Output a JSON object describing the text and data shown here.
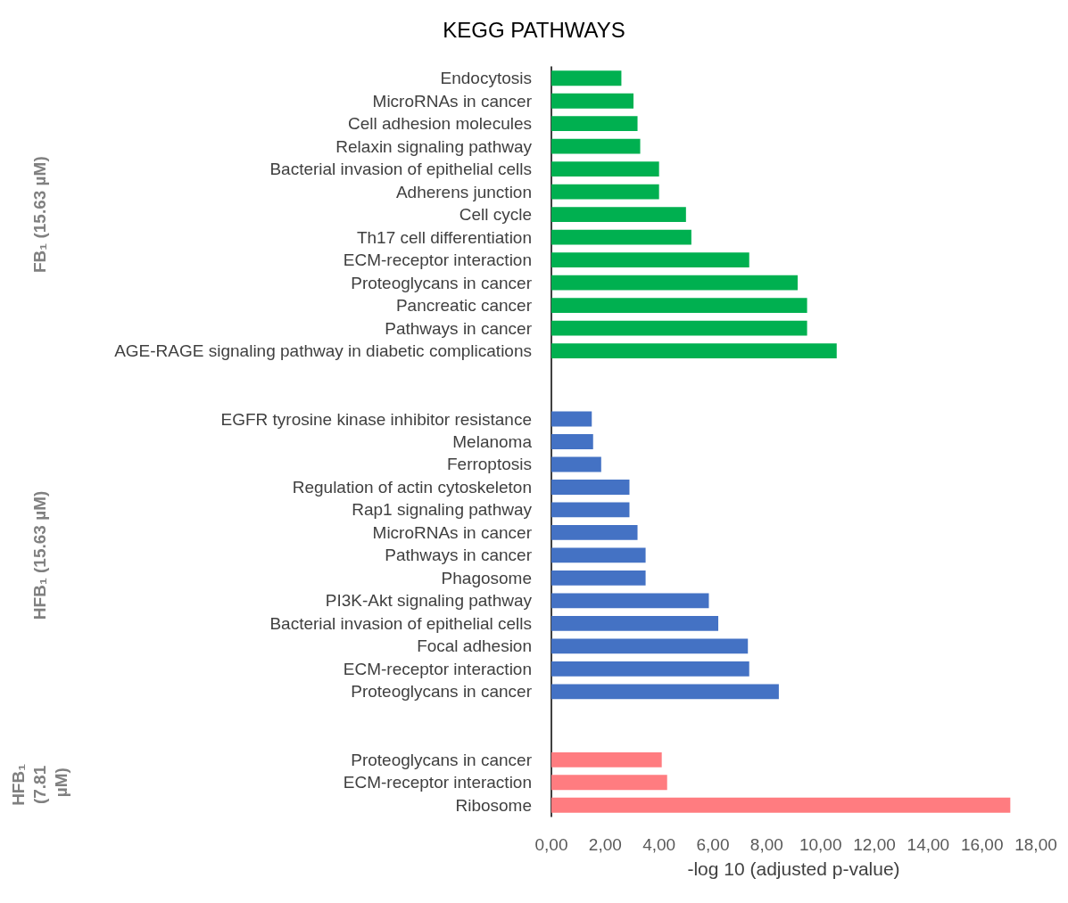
{
  "chart_data": {
    "type": "bar",
    "orientation": "horizontal",
    "title": "KEGG PATHWAYS",
    "xlabel": "-log 10 (adjusted p-value)",
    "categories": [
      "Endocytosis",
      "MicroRNAs in cancer",
      "Cell adhesion molecules",
      "Relaxin signaling pathway",
      "Bacterial invasion of epithelial cells",
      "Adherens junction",
      "Cell cycle",
      "Th17 cell differentiation",
      "ECM-receptor interaction",
      "Proteoglycans in cancer",
      "Pancreatic cancer",
      "Pathways in cancer",
      "AGE-RAGE signaling pathway in diabetic complications",
      null,
      null,
      "EGFR tyrosine kinase inhibitor resistance",
      "Melanoma",
      "Ferroptosis",
      "Regulation of actin cytoskeleton",
      "Rap1 signaling pathway",
      "MicroRNAs in cancer",
      "Pathways in cancer",
      "Phagosome",
      "PI3K-Akt signaling pathway",
      "Bacterial invasion of epithelial cells",
      "Focal adhesion",
      "ECM-receptor interaction",
      "Proteoglycans in cancer",
      null,
      null,
      "Proteoglycans in cancer",
      "ECM-receptor interaction",
      "Ribosome"
    ],
    "series": [
      {
        "color": "#00b050",
        "values": [
          2.6,
          3.05,
          3.2,
          3.3,
          4.0,
          4.0,
          5.0,
          5.2,
          7.35,
          9.15,
          9.5,
          9.5,
          10.6,
          null,
          null,
          null,
          null,
          null,
          null,
          null,
          null,
          null,
          null,
          null,
          null,
          null,
          null,
          null,
          null,
          null,
          null,
          null,
          null
        ]
      },
      {
        "color": "#4472c4",
        "values": [
          null,
          null,
          null,
          null,
          null,
          null,
          null,
          null,
          null,
          null,
          null,
          null,
          null,
          null,
          null,
          1.5,
          1.55,
          1.85,
          2.9,
          2.9,
          3.2,
          3.5,
          3.5,
          5.85,
          6.2,
          7.3,
          7.35,
          8.45,
          null,
          null,
          null,
          null,
          null
        ]
      },
      {
        "color": "#ff7c80",
        "values": [
          null,
          null,
          null,
          null,
          null,
          null,
          null,
          null,
          null,
          null,
          null,
          null,
          null,
          null,
          null,
          null,
          null,
          null,
          null,
          null,
          null,
          null,
          null,
          null,
          null,
          null,
          null,
          null,
          null,
          null,
          4.1,
          4.3,
          17.05
        ]
      }
    ],
    "xlim": [
      0,
      18
    ],
    "xticks": [
      {
        "value": 0,
        "label": "0,00"
      },
      {
        "value": 2,
        "label": "2,00"
      },
      {
        "value": 4,
        "label": "4,00"
      },
      {
        "value": 6,
        "label": "6,00"
      },
      {
        "value": 8,
        "label": "8,00"
      },
      {
        "value": 10,
        "label": "10,00"
      },
      {
        "value": 12,
        "label": "12,00"
      },
      {
        "value": 14,
        "label": "14,00"
      },
      {
        "value": 16,
        "label": "16,00"
      },
      {
        "value": 18,
        "label": "18,00"
      }
    ],
    "annotations": [
      "FB₁ (15.63 µM)",
      "HFB₁ (15.63 µM)",
      "HFB₁ (7.81 µM)"
    ],
    "grid": false
  }
}
